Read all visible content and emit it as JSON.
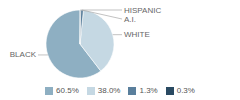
{
  "chart_data": {
    "type": "pie",
    "categories": [
      "BLACK",
      "WHITE",
      "A.I.",
      "HISPANIC"
    ],
    "values": [
      60.5,
      38.0,
      1.3,
      0.3
    ],
    "value_labels": [
      "60.5%",
      "38.0%",
      "1.3%",
      "0.3%"
    ],
    "colors": [
      "#8eafc2",
      "#c5d8e3",
      "#5a7f9c",
      "#2a4a62"
    ],
    "legend": "bottom"
  }
}
